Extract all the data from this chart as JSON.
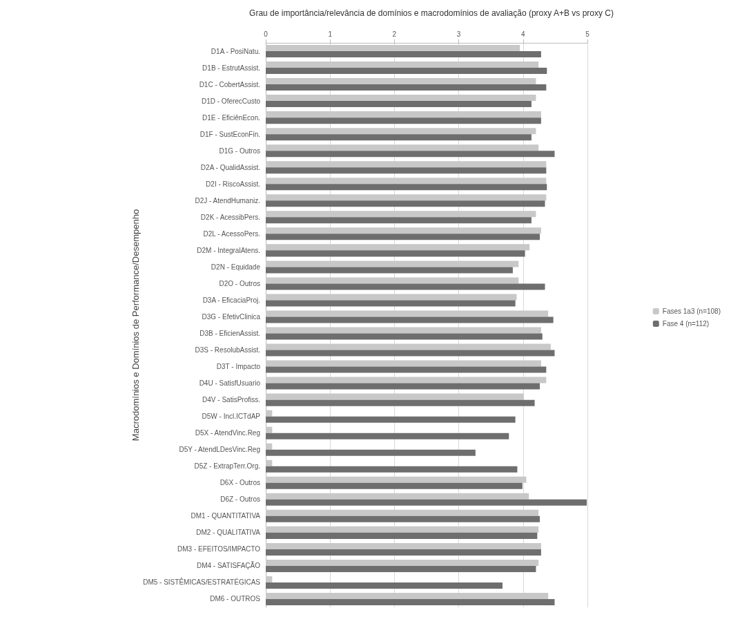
{
  "chart_data": {
    "type": "bar",
    "orientation": "horizontal",
    "title": "Grau de importância/relevância de domínios e macrodomínios de avaliação (proxy A+B vs proxy C)",
    "ylabel": "Macrodomínios e Domínios de Performance/Desempenho",
    "categories": [
      "D1A - PosiNatu.",
      "D1B - EstrutAssist.",
      "D1C - CobertAssist.",
      "D1D - OferecCusto",
      "D1E - EficiênEcon.",
      "D1F - SustEconFin.",
      "D1G - Outros",
      "D2A - QualidAssist.",
      "D2I - RiscoAssist.",
      "D2J - AtendHumaniz.",
      "D2K - AcessibPers.",
      "D2L - AcessoPers.",
      "D2M - IntegralAtens.",
      "D2N - Equidade",
      "D2O - Outros",
      "D3A - EficaciaProj.",
      "D3G - EfetivClinica",
      "D3B - EficienAssist.",
      "D3S - ResolubAssist.",
      "D3T - Impacto",
      "D4U - SatisfUsuario",
      "D4V - SatisProfiss.",
      "D5W - Incl.ICTdAP",
      "D5X - AtendVinc.Reg",
      "D5Y - AtendLDesVinc.Reg",
      "D5Z - ExtrapTerr.Org.",
      "D6X - Outros",
      "D6Z - Outros",
      "DM1 - QUANTITATIVA",
      "DM2 - QUALITATIVA",
      "DM3 - EFEITOS/IMPACTO",
      "DM4 - SATISFAÇÃO",
      "DM5 - SISTÊMICAS/ESTRATÉGICAS",
      "DM6 - OUTROS"
    ],
    "series": [
      {
        "name": "Fases 1a3 (n=108)",
        "color": "#c8c8c8",
        "values": [
          3.95,
          4.24,
          4.2,
          4.2,
          4.28,
          4.2,
          4.24,
          4.36,
          4.36,
          4.36,
          4.2,
          4.28,
          4.1,
          3.93,
          3.93,
          3.9,
          4.39,
          4.28,
          4.43,
          4.28,
          4.36,
          4.01,
          0.1,
          0.1,
          0.1,
          0.1,
          4.05,
          4.09,
          4.24,
          4.24,
          4.28,
          4.24,
          0.1,
          4.39
        ]
      },
      {
        "name": "Fase 4 (n=112)",
        "color": "#6e6e6e",
        "values": [
          4.28,
          4.37,
          4.36,
          4.13,
          4.28,
          4.13,
          4.49,
          4.36,
          4.37,
          4.34,
          4.13,
          4.26,
          4.03,
          3.84,
          4.34,
          3.88,
          4.47,
          4.3,
          4.49,
          4.36,
          4.26,
          4.18,
          3.88,
          3.78,
          3.26,
          3.91,
          3.99,
          4.99,
          4.26,
          4.22,
          4.28,
          4.2,
          3.68,
          4.49
        ]
      }
    ],
    "xlim": [
      0,
      5
    ],
    "xticks": [
      0,
      1,
      2,
      3,
      4,
      5
    ],
    "grid": "x",
    "legend": "right"
  }
}
